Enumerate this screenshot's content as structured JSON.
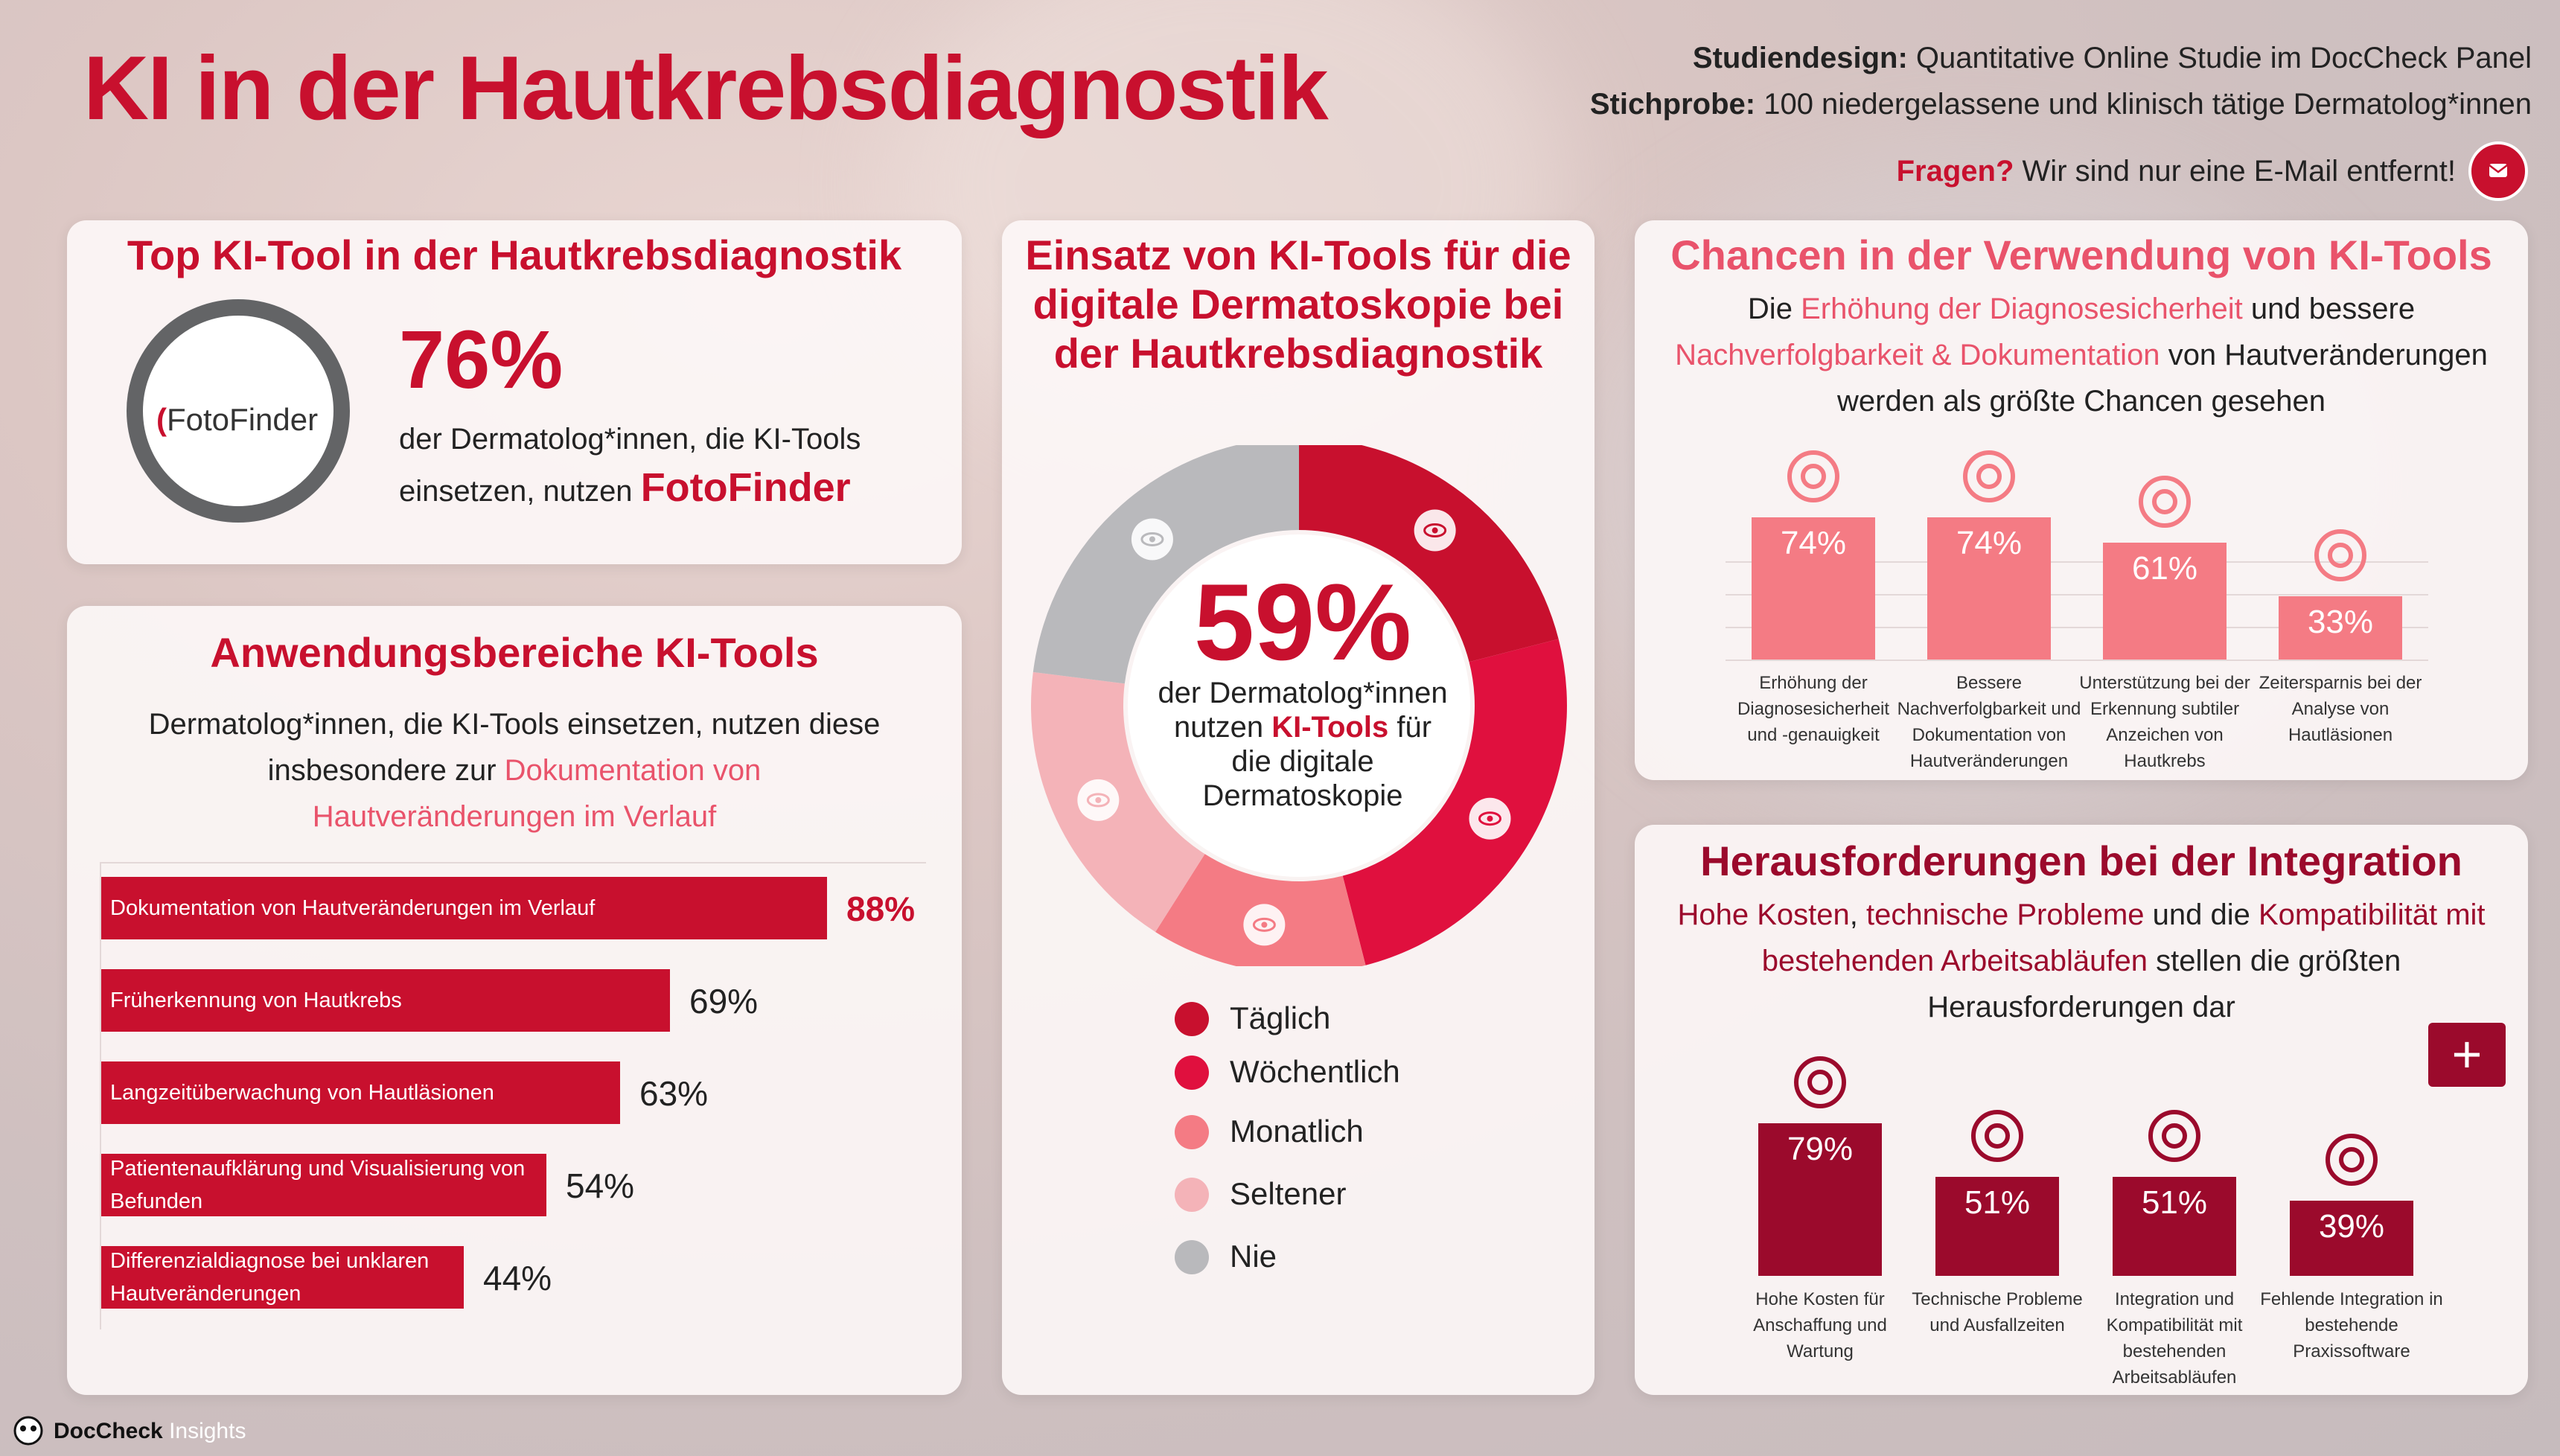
{
  "header": {
    "title": "KI in der Hautkrebsdiagnostik",
    "studiendesign_label": "Studiendesign:",
    "studiendesign_value": "Quantitative Online Studie im DocCheck Panel",
    "stichprobe_label": "Stichprobe:",
    "stichprobe_value": "100 niedergelassene und klinisch tätige Dermatolog*innen",
    "fragen_label": "Fragen?",
    "fragen_text": "Wir sind nur eine E-Mail entfernt!"
  },
  "top_tool": {
    "title": "Top KI-Tool in der Hautkrebsdiagnostik",
    "logo_text": "FotoFinder",
    "percent": "76%",
    "text_line1": "der Dermatolog*innen, die KI-Tools",
    "text_line2": "einsetzen, nutzen",
    "brand": "FotoFinder"
  },
  "anwendung": {
    "title": "Anwendungsbereiche KI-Tools",
    "intro_line1": "Dermatolog*innen, die KI-Tools einsetzen, nutzen diese",
    "intro_line2_plain": "insbesondere zur",
    "intro_line2_accent": "Dokumentation von",
    "intro_line3_accent": "Hautveränderungen im Verlauf"
  },
  "einsatz": {
    "title_line1": "Einsatz von KI-Tools für die",
    "title_line2": "digitale Dermatoskopie bei",
    "title_line3": "der Hautkrebsdiagnostik",
    "center_percent": "59%",
    "center_line1": "der Dermatolog*innen",
    "center_line2_plain": "nutzen",
    "center_line2_accent": "KI-Tools",
    "center_line2_end": "für",
    "center_line3": "die digitale",
    "center_line4": "Dermatoskopie"
  },
  "chancen": {
    "title": "Chancen in der Verwendung von KI-Tools",
    "line1_a": "Die",
    "line1_b": "Erhöhung der Diagnosesicherheit",
    "line1_c": "und bessere",
    "line2_a": "Nachverfolgbarkeit & Dokumentation",
    "line2_b": "von Hautveränderungen",
    "line3": "werden als größte Chancen gesehen"
  },
  "heraus": {
    "title": "Herausforderungen bei der Integration",
    "line1_a": "Hohe Kosten",
    "line1_b": ", ",
    "line1_c": "technische Probleme",
    "line1_d": " und die ",
    "line1_e": "Kompatibilität mit",
    "line2_a": "bestehenden Arbeitsabläufen",
    "line2_b": " stellen die größten",
    "line3": "Herausforderungen dar"
  },
  "footer": {
    "brand": "DocCheck",
    "brand_suffix": "Insights"
  },
  "colors": {
    "accent": "#c8102e",
    "pink": "#e9536b",
    "salmon": "#f47b84",
    "light_pink": "#f4b3b8",
    "dark_red": "#9b0a2c",
    "grey": "#b9b9bc"
  },
  "chart_data": [
    {
      "type": "bar",
      "orientation": "horizontal",
      "categories": [
        "Dokumentation von Hautveränderungen im Verlauf",
        "Früherkennung von Hautkrebs",
        "Langzeitüberwachung von Hautläsionen",
        "Patientenaufklärung und Visualisierung von Befunden",
        "Differenzialdiagnose bei unklaren Hautveränderungen"
      ],
      "values": [
        88,
        69,
        63,
        54,
        44
      ],
      "value_labels": [
        "88%",
        "69%",
        "63%",
        "54%",
        "44%"
      ]
    },
    {
      "type": "pie",
      "labels": [
        "Täglich",
        "Wöchentlich",
        "Monatlich",
        "Seltener",
        "Nie"
      ],
      "values": [
        21,
        25,
        13,
        18,
        23
      ],
      "colors": [
        "#c8102e",
        "#e0103e",
        "#f47b84",
        "#f4b3b8",
        "#b9b9bc"
      ]
    },
    {
      "type": "bar",
      "categories": [
        "Erhöhung der Diagnosesicherheit und -genauigkeit",
        "Bessere Nachverfolgbarkeit und Dokumentation von Hautveränderungen",
        "Unterstützung bei der Erkennung subtiler Anzeichen von Hautkrebs",
        "Zeitersparnis bei der Analyse von Hautläsionen"
      ],
      "values": [
        74,
        74,
        61,
        33
      ],
      "value_labels": [
        "74%",
        "74%",
        "61%",
        "33%"
      ]
    },
    {
      "type": "bar",
      "categories": [
        "Hohe Kosten für Anschaffung und Wartung",
        "Technische Probleme und Ausfallzeiten",
        "Integration und Kompatibilität mit bestehenden Arbeitsabläufen",
        "Fehlende Integration in bestehende Praxissoftware"
      ],
      "values": [
        79,
        51,
        51,
        39
      ],
      "value_labels": [
        "79%",
        "51%",
        "51%",
        "39%"
      ]
    }
  ]
}
